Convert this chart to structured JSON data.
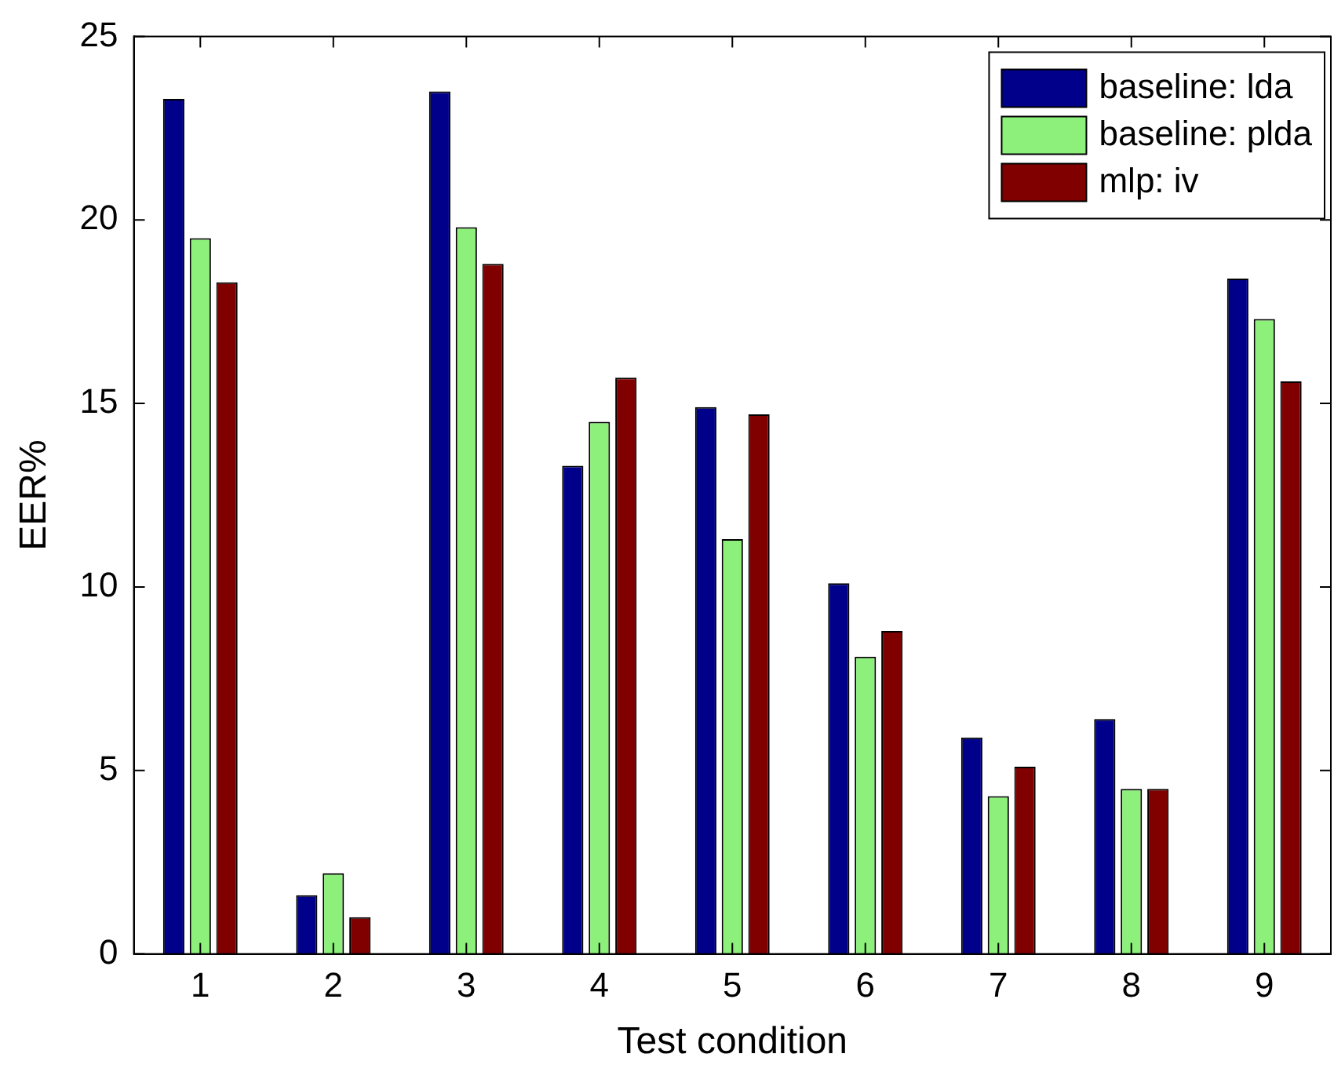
{
  "chart_data": {
    "type": "bar",
    "xlabel": "Test condition",
    "ylabel": "EER%",
    "categories": [
      "1",
      "2",
      "3",
      "4",
      "5",
      "6",
      "7",
      "8",
      "9"
    ],
    "series": [
      {
        "name": "baseline: lda",
        "color": "#00008b",
        "values": [
          23.3,
          1.6,
          23.5,
          13.3,
          14.9,
          10.1,
          5.9,
          6.4,
          18.4
        ]
      },
      {
        "name": "baseline: plda",
        "color": "#8cf07a",
        "values": [
          19.5,
          2.2,
          19.8,
          14.5,
          11.3,
          8.1,
          4.3,
          4.5,
          17.3
        ]
      },
      {
        "name": "mlp: iv",
        "color": "#800000",
        "values": [
          18.3,
          1.0,
          18.8,
          15.7,
          14.7,
          8.8,
          5.1,
          4.5,
          15.6
        ]
      }
    ],
    "ylim": [
      0,
      25
    ],
    "yticks": [
      0,
      5,
      10,
      15,
      20,
      25
    ],
    "grid": false,
    "legend": "top right"
  }
}
